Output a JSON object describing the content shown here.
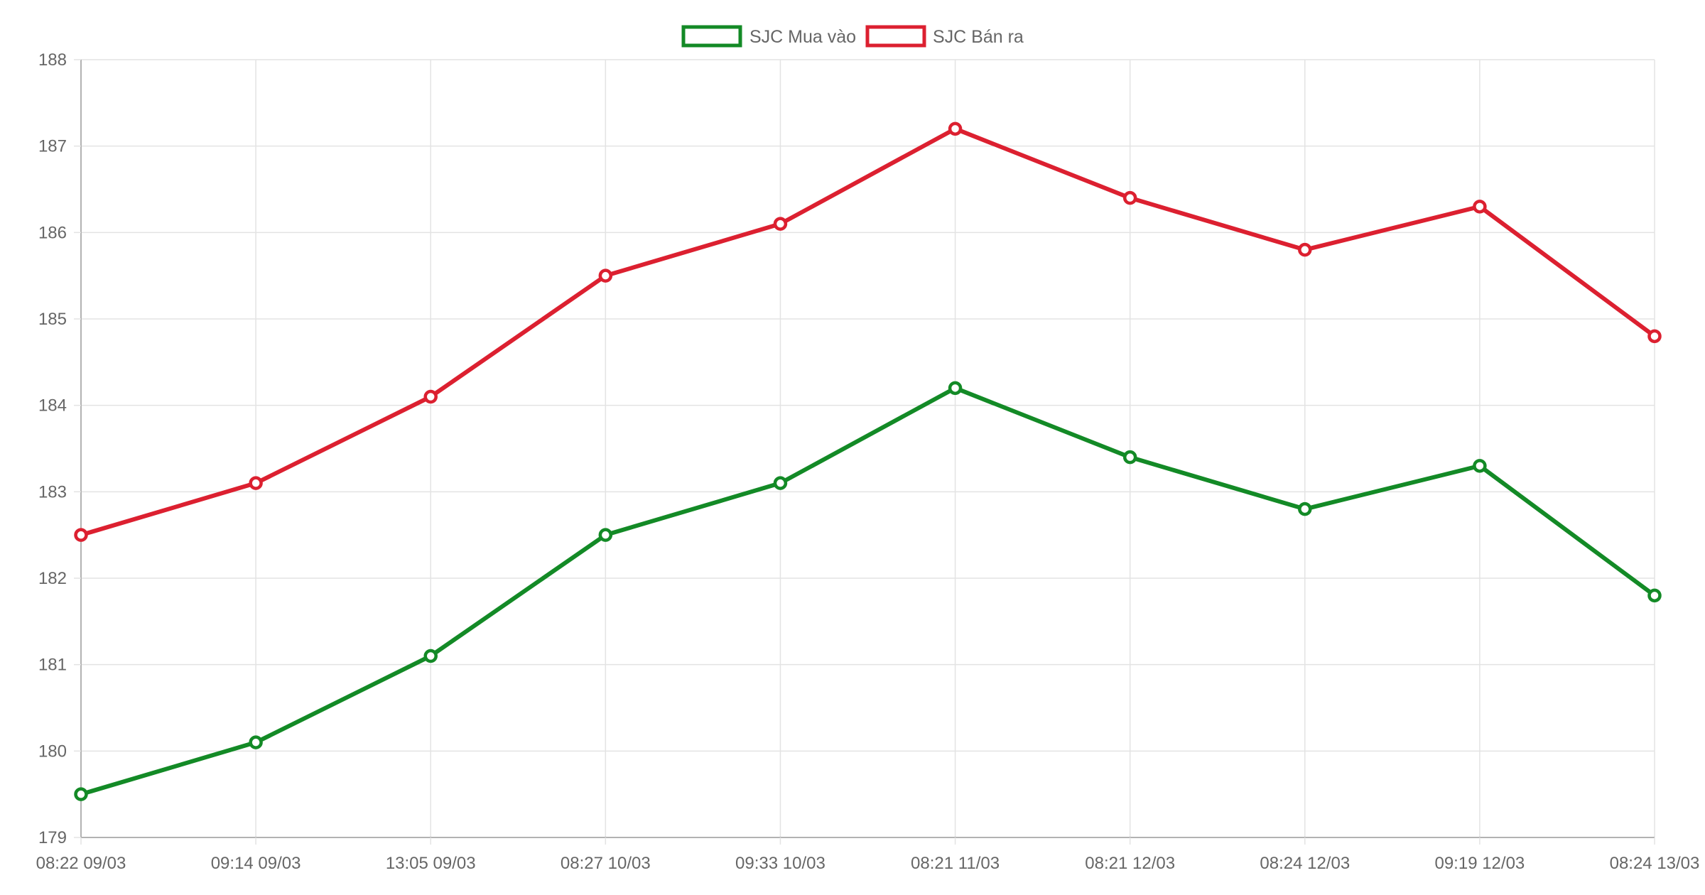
{
  "chart_data": {
    "type": "line",
    "categories": [
      "08:22 09/03",
      "09:14 09/03",
      "13:05 09/03",
      "08:27 10/03",
      "09:33 10/03",
      "08:21 11/03",
      "08:21 12/03",
      "08:24 12/03",
      "09:19 12/03",
      "08:24 13/03"
    ],
    "series": [
      {
        "name": "SJC Mua vào",
        "color": "#138a26",
        "values": [
          179.5,
          180.1,
          181.1,
          182.5,
          183.1,
          184.2,
          183.4,
          182.8,
          183.3,
          181.8
        ]
      },
      {
        "name": "SJC Bán ra",
        "color": "#dc2030",
        "values": [
          182.5,
          183.1,
          184.1,
          185.5,
          186.1,
          187.2,
          186.4,
          185.8,
          186.3,
          184.8
        ]
      }
    ],
    "ylim": [
      179,
      188
    ],
    "yticks": [
      "179",
      "180",
      "181",
      "182",
      "183",
      "184",
      "185",
      "186",
      "187",
      "188"
    ],
    "legend_position": "top-center",
    "grid": true
  }
}
